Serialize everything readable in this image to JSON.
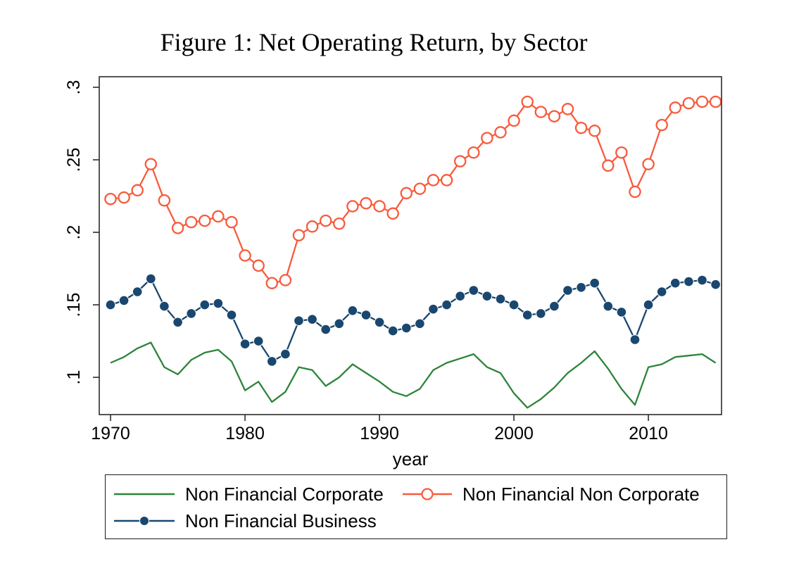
{
  "figure": {
    "title": "Figure 1: Net Operating Return, by Sector"
  },
  "chart_data": {
    "type": "line",
    "title": "Figure 1: Net Operating Return, by Sector",
    "xlabel": "year",
    "ylabel": "",
    "grid": false,
    "legend_position": "bottom",
    "xlim": [
      1969.16,
      2015.44
    ],
    "ylim": [
      0.0743,
      0.3073
    ],
    "x_axis": {
      "title": "year",
      "ticks": [
        {
          "label": "1970",
          "value": 1970
        },
        {
          "label": "1980",
          "value": 1980
        },
        {
          "label": "1990",
          "value": 1990
        },
        {
          "label": "2000",
          "value": 2000
        },
        {
          "label": "2010",
          "value": 2010
        }
      ]
    },
    "y_axis": {
      "ticks": [
        {
          "label": ".1",
          "value": 0.1
        },
        {
          "label": ".15",
          "value": 0.15
        },
        {
          "label": ".2",
          "value": 0.2
        },
        {
          "label": ".25",
          "value": 0.25
        },
        {
          "label": ".3",
          "value": 0.3
        }
      ]
    },
    "x": [
      1970,
      1971,
      1972,
      1973,
      1974,
      1975,
      1976,
      1977,
      1978,
      1979,
      1980,
      1981,
      1982,
      1983,
      1984,
      1985,
      1986,
      1987,
      1988,
      1989,
      1990,
      1991,
      1992,
      1993,
      1994,
      1995,
      1996,
      1997,
      1998,
      1999,
      2000,
      2001,
      2002,
      2003,
      2004,
      2005,
      2006,
      2007,
      2008,
      2009,
      2010,
      2011,
      2012,
      2013,
      2014,
      2015
    ],
    "series": [
      {
        "name": "Non Financial Corporate",
        "color": "#2d8439",
        "marker": "none",
        "values": [
          0.11,
          0.114,
          0.12,
          0.124,
          0.107,
          0.102,
          0.112,
          0.117,
          0.119,
          0.111,
          0.091,
          0.097,
          0.083,
          0.09,
          0.107,
          0.105,
          0.094,
          0.1,
          0.109,
          0.103,
          0.097,
          0.09,
          0.087,
          0.092,
          0.105,
          0.11,
          0.113,
          0.116,
          0.107,
          0.103,
          0.089,
          0.079,
          0.085,
          0.093,
          0.103,
          0.11,
          0.118,
          0.106,
          0.092,
          0.081,
          0.107,
          0.109,
          0.114,
          0.115,
          0.116,
          0.11
        ]
      },
      {
        "name": "Non Financial Non Corporate",
        "color": "#f85b3d",
        "marker": "open-circle",
        "values": [
          0.223,
          0.224,
          0.229,
          0.247,
          0.222,
          0.203,
          0.207,
          0.208,
          0.211,
          0.207,
          0.184,
          0.177,
          0.165,
          0.167,
          0.198,
          0.204,
          0.208,
          0.206,
          0.218,
          0.22,
          0.218,
          0.213,
          0.227,
          0.23,
          0.236,
          0.236,
          0.249,
          0.255,
          0.265,
          0.269,
          0.277,
          0.29,
          0.283,
          0.28,
          0.285,
          0.272,
          0.27,
          0.246,
          0.255,
          0.228,
          0.247,
          0.274,
          0.286,
          0.289,
          0.29,
          0.29
        ]
      },
      {
        "name": "Non Financial Business",
        "color": "#1a476f",
        "marker": "filled-circle",
        "values": [
          0.15,
          0.153,
          0.159,
          0.168,
          0.149,
          0.138,
          0.144,
          0.15,
          0.151,
          0.143,
          0.123,
          0.125,
          0.111,
          0.116,
          0.139,
          0.14,
          0.133,
          0.137,
          0.146,
          0.143,
          0.138,
          0.132,
          0.134,
          0.137,
          0.147,
          0.15,
          0.156,
          0.16,
          0.156,
          0.154,
          0.15,
          0.143,
          0.144,
          0.149,
          0.16,
          0.162,
          0.165,
          0.149,
          0.145,
          0.126,
          0.15,
          0.159,
          0.165,
          0.166,
          0.167,
          0.164
        ]
      }
    ],
    "legend": {
      "items": [
        {
          "series_index": 0
        },
        {
          "series_index": 1
        },
        {
          "series_index": 2
        }
      ]
    }
  }
}
